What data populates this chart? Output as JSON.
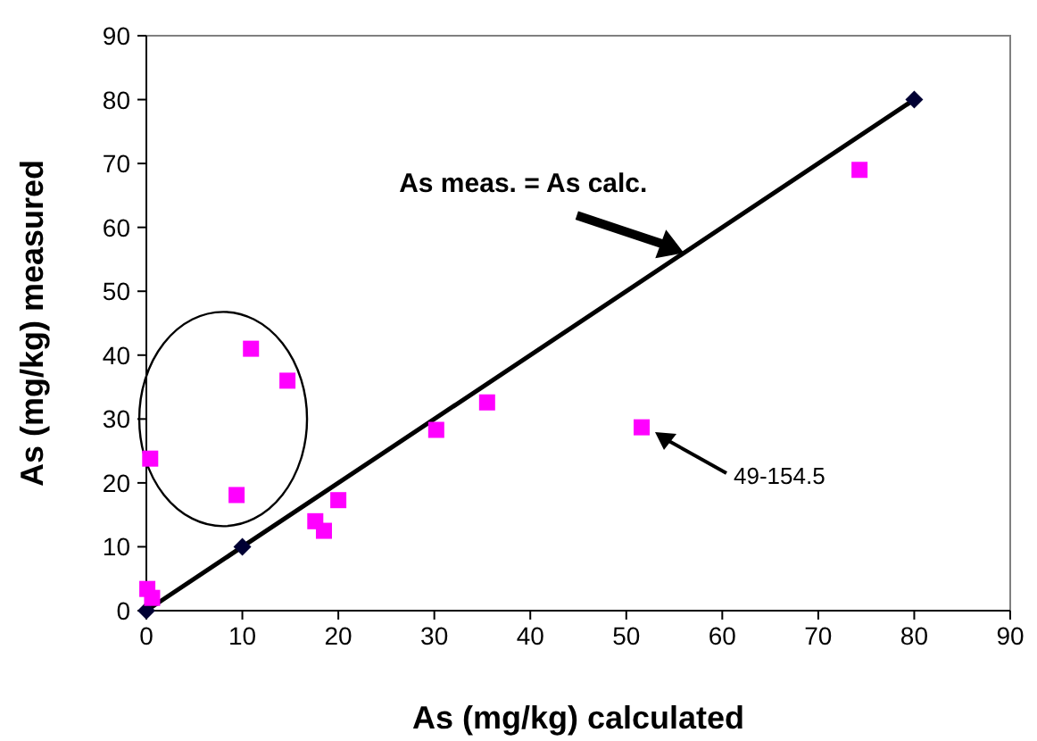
{
  "chart_data": {
    "type": "scatter",
    "xlabel": "As (mg/kg) calculated",
    "ylabel": "As (mg/kg) measured",
    "xlim": [
      0,
      90
    ],
    "ylim": [
      0,
      90
    ],
    "xticks": [
      0,
      10,
      20,
      30,
      40,
      50,
      60,
      70,
      80,
      90
    ],
    "yticks": [
      0,
      10,
      20,
      30,
      40,
      50,
      60,
      70,
      80,
      90
    ],
    "grid": false,
    "series": [
      {
        "type": "line",
        "color": "#000000",
        "marker": "diamond",
        "x": [
          0,
          10,
          80
        ],
        "values": [
          0,
          10,
          80
        ]
      },
      {
        "color": "#ff00ff",
        "marker": "square",
        "x": [
          0.1,
          0.6,
          0.4,
          9.4,
          10.9,
          14.7,
          17.6,
          18.5,
          20,
          30.2,
          35.5,
          51.6,
          74.3
        ],
        "values": [
          3.4,
          2,
          23.8,
          18.1,
          41,
          36,
          14,
          12.5,
          17.3,
          28.3,
          32.6,
          28.7,
          69
        ]
      }
    ],
    "annotations": [
      {
        "text": "As meas. = As calc.",
        "x": 56,
        "y": 56
      },
      "49-154.5"
    ]
  }
}
